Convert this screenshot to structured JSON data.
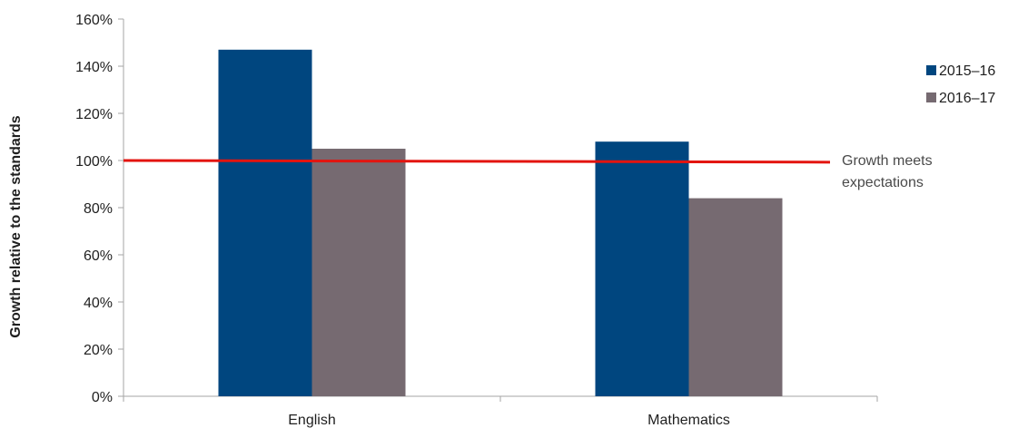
{
  "chart_data": {
    "type": "bar",
    "title": "",
    "xlabel": "",
    "ylabel": "Growth relative to the standards",
    "categories": [
      "English",
      "Mathematics"
    ],
    "series": [
      {
        "name": "2015–16",
        "values": [
          147,
          108
        ],
        "color": "#00467f"
      },
      {
        "name": "2016–17",
        "values": [
          105,
          84
        ],
        "color": "#766a71"
      }
    ],
    "yticks": [
      "0%",
      "20%",
      "40%",
      "60%",
      "80%",
      "100%",
      "120%",
      "140%",
      "160%"
    ],
    "ylim": [
      0,
      160
    ],
    "y_unit": "%",
    "grid": false,
    "legend_position": "right",
    "reference_line": {
      "value_start": 100,
      "value_end": 99.3,
      "color": "#e3140f",
      "label_lines": [
        "Growth meets",
        "expectations"
      ]
    },
    "axis_color": "#a6a6a6"
  }
}
